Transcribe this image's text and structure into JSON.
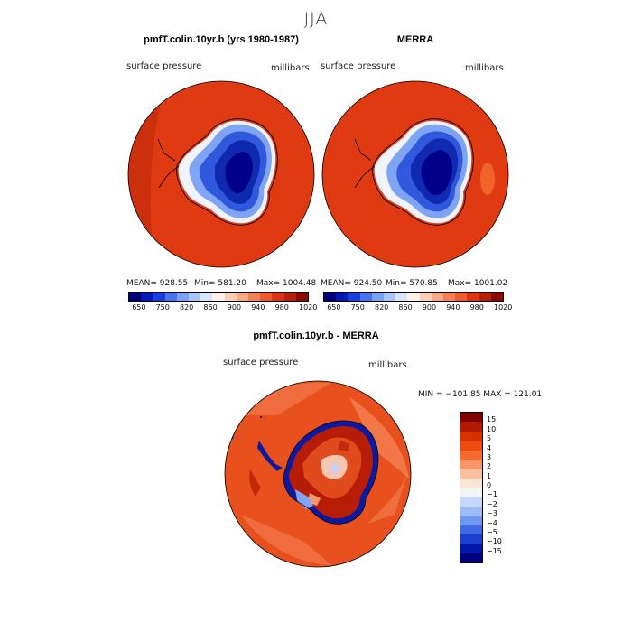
{
  "figure": {
    "season": "JJA"
  },
  "panel1": {
    "title": "pmfT.colin.10yr.b (yrs 1980-1987)",
    "var_label": "surface pressure",
    "units": "millibars",
    "stats": {
      "mean": "MEAN= 928.55",
      "min": "Min= 581.20",
      "max": "Max= 1004.48"
    }
  },
  "panel2": {
    "title": "MERRA",
    "var_label": "surface pressure",
    "units": "millibars",
    "stats": {
      "mean": "MEAN= 924.50",
      "min": "Min= 570.85",
      "max": "Max= 1001.02"
    }
  },
  "panel3": {
    "title": "pmfT.colin.10yr.b - MERRA",
    "var_label": "surface pressure",
    "units": "millibars",
    "minmax": "MIN = −101.85  MAX = 121.01"
  },
  "colorbar_abs": {
    "ticks": [
      "650",
      "750",
      "820",
      "860",
      "900",
      "940",
      "980",
      "1020"
    ],
    "colors": [
      "#00007f",
      "#0019b4",
      "#1a3fe0",
      "#4a73f0",
      "#7aa0f7",
      "#a9c6fb",
      "#d7e6fd",
      "#fdf0e8",
      "#fdcfb4",
      "#fbaa85",
      "#f77f55",
      "#ef5b2f",
      "#dc3412",
      "#b81f07",
      "#8b0a00"
    ]
  },
  "colorbar_diff": {
    "ticks": [
      "15",
      "10",
      "5",
      "4",
      "3",
      "2",
      "1",
      "0",
      "−1",
      "−2",
      "−3",
      "−4",
      "−5",
      "−10",
      "−15"
    ],
    "colors": [
      "#7f0000",
      "#b01a00",
      "#d53200",
      "#ec4a10",
      "#f66a32",
      "#fb9467",
      "#fdbf9f",
      "#fde5d6",
      "#f4f4f6",
      "#c6d9fa",
      "#9cbcf5",
      "#6f97ef",
      "#3f6ae4",
      "#1b3fd0",
      "#0018a8",
      "#00007a"
    ]
  },
  "map_colors": {
    "ocean": "#e03a12",
    "ocean_dark": "#cc2f0c",
    "ice_edge": "#f1f3fb",
    "ice_light": "#7fa4f4",
    "ice_mid": "#2f58dc",
    "ice_deep": "#0f2ab0",
    "ice_core": "#00008a"
  }
}
